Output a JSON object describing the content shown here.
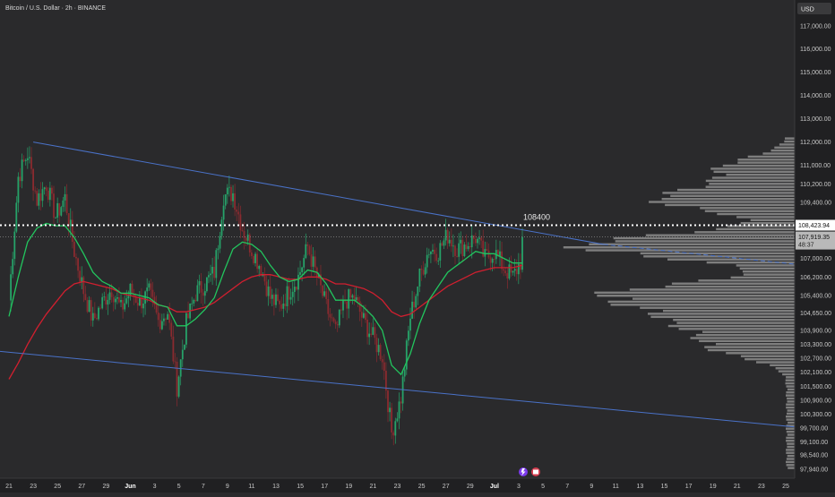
{
  "header": {
    "title": "Bitcoin / U.S. Dollar · 2h · BINANCE"
  },
  "currency_button": "USD",
  "colors": {
    "background": "#2a2a2c",
    "up_candle": "#26a269",
    "down_candle": "#8a2a2f",
    "ema_fast": "#22c55e",
    "ema_slow": "#d11f2f",
    "trendline": "#4a72c8",
    "volume_profile": "#8d8d8d",
    "dotted_level": "#ffffff",
    "axis_text": "#c8c8c8"
  },
  "chart_data": {
    "type": "candlestick",
    "symbol": "BTCUSD",
    "interval": "2h",
    "exchange": "BINANCE",
    "y_range": [
      97700,
      117800
    ],
    "y_ticks": [
      97940,
      98540,
      99100,
      99700,
      100300,
      100900,
      101500,
      102100,
      102700,
      103300,
      103900,
      104650,
      105400,
      106200,
      107000,
      108400,
      109400,
      110200,
      111000,
      112000,
      113000,
      114000,
      115000,
      116000,
      117000
    ],
    "y_tick_labels": [
      "97,940.00",
      "98,540.00",
      "99,100.00",
      "99,700.00",
      "100,300.00",
      "100,900.00",
      "101,500.00",
      "102,100.00",
      "102,700.00",
      "103,300.00",
      "103,900.00",
      "104,650.00",
      "105,400.00",
      "106,200.00",
      "107,000.00",
      "108,400.00",
      "109,400.00",
      "110,200.00",
      "111,000.00",
      "112,000.00",
      "113,000.00",
      "114,000.00",
      "115,000.00",
      "116,000.00",
      "117,000.00"
    ],
    "x_tick_labels": [
      "21",
      "23",
      "25",
      "27",
      "29",
      "Jun",
      "3",
      "5",
      "7",
      "9",
      "11",
      "13",
      "15",
      "17",
      "19",
      "21",
      "23",
      "25",
      "27",
      "29",
      "Jul",
      "3",
      "5",
      "7",
      "9",
      "11",
      "13",
      "15",
      "17",
      "19",
      "21",
      "23",
      "25"
    ],
    "bold_x_ticks": [
      "Jun",
      "Jul"
    ],
    "price_path": [
      [
        0,
        105200
      ],
      [
        1,
        110500
      ],
      [
        2,
        111500
      ],
      [
        3,
        109500
      ],
      [
        4,
        110200
      ],
      [
        5,
        108800
      ],
      [
        6,
        109600
      ],
      [
        7,
        107300
      ],
      [
        8,
        105600
      ],
      [
        9,
        104300
      ],
      [
        10,
        105100
      ],
      [
        11,
        105700
      ],
      [
        12,
        104800
      ],
      [
        13,
        105600
      ],
      [
        14,
        105100
      ],
      [
        15,
        105500
      ],
      [
        16,
        104300
      ],
      [
        17,
        104700
      ],
      [
        18,
        101500
      ],
      [
        19,
        104200
      ],
      [
        20,
        105500
      ],
      [
        21,
        105900
      ],
      [
        22,
        106400
      ],
      [
        23,
        109700
      ],
      [
        24,
        109800
      ],
      [
        25,
        108300
      ],
      [
        26,
        107400
      ],
      [
        27,
        106600
      ],
      [
        28,
        105300
      ],
      [
        29,
        104900
      ],
      [
        30,
        105600
      ],
      [
        31,
        106200
      ],
      [
        32,
        107500
      ],
      [
        33,
        106200
      ],
      [
        34,
        104900
      ],
      [
        35,
        103800
      ],
      [
        36,
        105200
      ],
      [
        37,
        105300
      ],
      [
        38,
        104300
      ],
      [
        39,
        103600
      ],
      [
        40,
        102800
      ],
      [
        41,
        99500
      ],
      [
        42,
        101000
      ],
      [
        43,
        104500
      ],
      [
        44,
        106200
      ],
      [
        45,
        107400
      ],
      [
        46,
        107300
      ],
      [
        47,
        108000
      ],
      [
        48,
        107400
      ],
      [
        49,
        107600
      ],
      [
        50,
        107900
      ],
      [
        51,
        107000
      ],
      [
        52,
        107300
      ],
      [
        53,
        106600
      ],
      [
        54,
        106200
      ],
      [
        55,
        107000
      ]
    ],
    "ema_fast_values": [
      104500,
      106200,
      107700,
      108300,
      108500,
      108400,
      108400,
      107900,
      107200,
      106400,
      106000,
      105800,
      105500,
      105500,
      105400,
      105300,
      105000,
      104900,
      104100,
      104100,
      104400,
      104800,
      105300,
      106400,
      107400,
      107700,
      107600,
      107300,
      106700,
      106200,
      106000,
      106100,
      106500,
      106400,
      105900,
      105200,
      105200,
      105200,
      104900,
      104500,
      103900,
      102400,
      102000,
      102900,
      104200,
      105200,
      105800,
      106400,
      106700,
      107000,
      107300,
      107200,
      107200,
      107000,
      106800,
      106800
    ],
    "ema_slow_values": [
      101800,
      102500,
      103300,
      104000,
      104600,
      105100,
      105600,
      105900,
      106000,
      105900,
      105800,
      105700,
      105500,
      105400,
      105300,
      105200,
      105000,
      104900,
      104700,
      104700,
      104800,
      104900,
      105100,
      105400,
      105700,
      106000,
      106200,
      106300,
      106300,
      106200,
      106100,
      106100,
      106200,
      106200,
      106100,
      105900,
      105900,
      105800,
      105700,
      105500,
      105200,
      104700,
      104500,
      104600,
      104900,
      105200,
      105500,
      105800,
      106000,
      106200,
      106400,
      106500,
      106600,
      106600,
      106600,
      106700
    ],
    "upper_trendline": {
      "from": [
        0.5,
        112000
      ],
      "to": [
        93,
        106800
      ],
      "label": ""
    },
    "lower_trendline": {
      "from": [
        -2,
        103000
      ],
      "to": [
        100,
        99750
      ],
      "label": ""
    },
    "horizontal_level": {
      "value": 108423.94,
      "label": "108400"
    },
    "price_labels": [
      {
        "value": 108423.94,
        "text": "108,423.94"
      },
      {
        "value": 107919.35,
        "text": "107,919.35",
        "sub": "48:37"
      }
    ],
    "volume_profile": {
      "price_min": 97900,
      "price_max": 112200,
      "rows": 110,
      "peaks": [
        {
          "price": 107500,
          "strength": 1.0
        },
        {
          "price": 105400,
          "strength": 0.85
        },
        {
          "price": 109500,
          "strength": 0.62
        },
        {
          "price": 110800,
          "strength": 0.32
        },
        {
          "price": 103200,
          "strength": 0.35
        },
        {
          "price": 104300,
          "strength": 0.48
        }
      ]
    },
    "ylabel": "",
    "xlabel": "",
    "grid": false,
    "legend": "none"
  }
}
